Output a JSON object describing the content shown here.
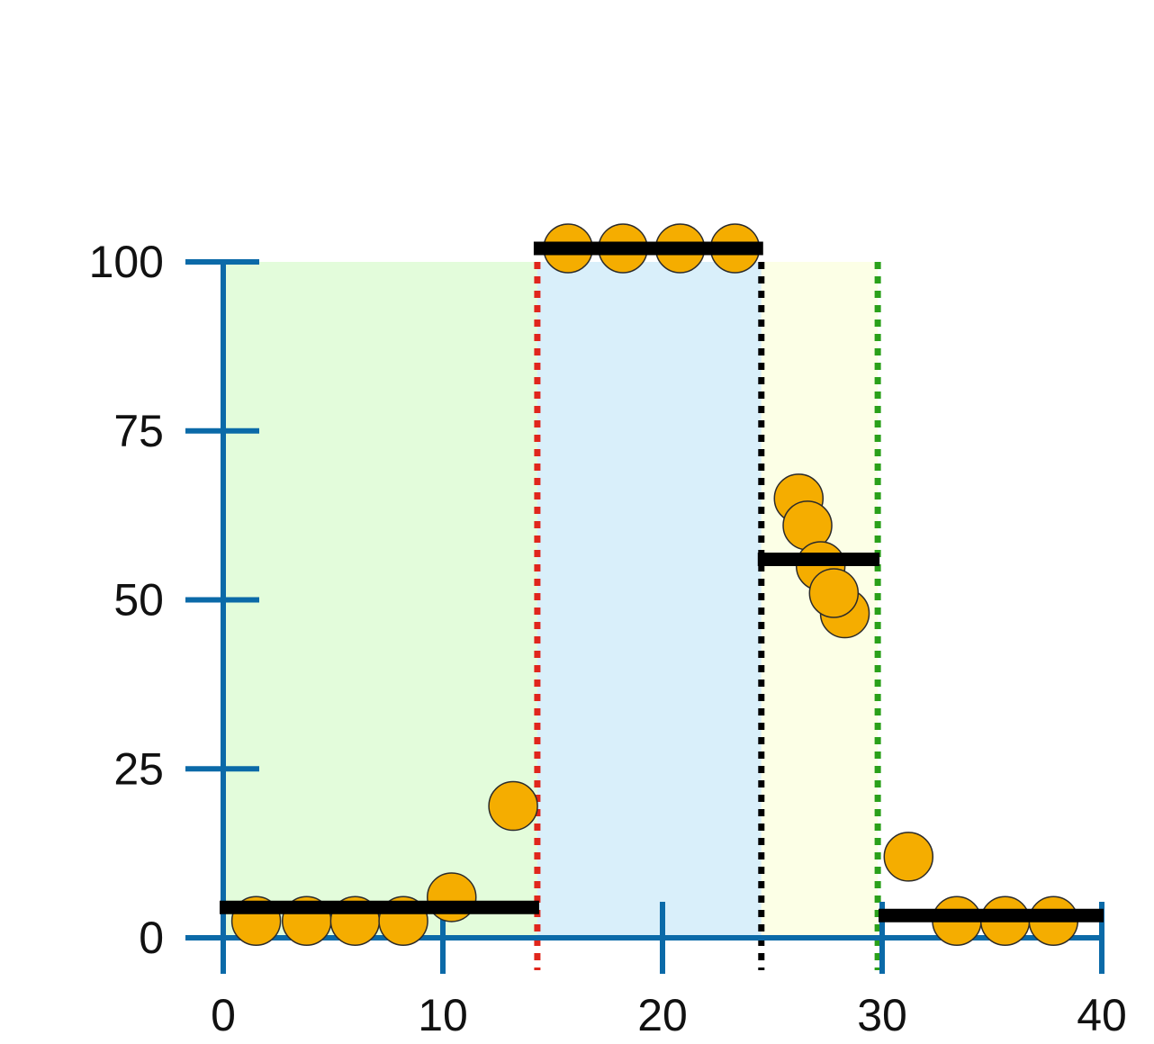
{
  "chart_data": {
    "type": "scatter",
    "title": "",
    "xlabel": "",
    "ylabel": "",
    "xlim": [
      0,
      40
    ],
    "ylim": [
      0,
      100
    ],
    "x_ticks": [
      "0",
      "10",
      "20",
      "30",
      "40"
    ],
    "y_ticks": [
      "0",
      "25",
      "50",
      "75",
      "100"
    ],
    "grid": false,
    "regions": [
      {
        "x_start": 0,
        "x_end": 14.3,
        "color": "#e3fcdb"
      },
      {
        "x_start": 14.3,
        "x_end": 24.5,
        "color": "#d9effa"
      },
      {
        "x_start": 24.5,
        "x_end": 29.8,
        "color": "#fcffe6"
      }
    ],
    "boundaries": [
      {
        "x": 14.3,
        "color": "#e0261c"
      },
      {
        "x": 24.5,
        "color": "#000000"
      },
      {
        "x": 29.8,
        "color": "#2aa01a"
      }
    ],
    "segment_means": [
      {
        "x_start": 0,
        "x_end": 14.3,
        "y": 4.5
      },
      {
        "x_start": 14.3,
        "x_end": 24.5,
        "y": 102
      },
      {
        "x_start": 24.5,
        "x_end": 29.8,
        "y": 56
      },
      {
        "x_start": 30,
        "x_end": 40,
        "y": 3.3
      }
    ],
    "points": [
      {
        "x": 1.5,
        "y": 2.5
      },
      {
        "x": 3.8,
        "y": 2.5
      },
      {
        "x": 6.0,
        "y": 2.5
      },
      {
        "x": 8.2,
        "y": 2.5
      },
      {
        "x": 10.4,
        "y": 6.0
      },
      {
        "x": 13.2,
        "y": 19.5
      },
      {
        "x": 15.7,
        "y": 102
      },
      {
        "x": 18.2,
        "y": 102
      },
      {
        "x": 20.8,
        "y": 102
      },
      {
        "x": 23.3,
        "y": 102
      },
      {
        "x": 26.2,
        "y": 65
      },
      {
        "x": 26.6,
        "y": 61
      },
      {
        "x": 27.2,
        "y": 55
      },
      {
        "x": 28.3,
        "y": 48
      },
      {
        "x": 27.8,
        "y": 51
      },
      {
        "x": 31.2,
        "y": 12
      },
      {
        "x": 33.4,
        "y": 2.5
      },
      {
        "x": 35.6,
        "y": 2.5
      },
      {
        "x": 37.8,
        "y": 2.5
      }
    ],
    "point_color": "#f5ad00",
    "axis_color": "#0b6aa8",
    "mean_line_color": "#000000"
  }
}
